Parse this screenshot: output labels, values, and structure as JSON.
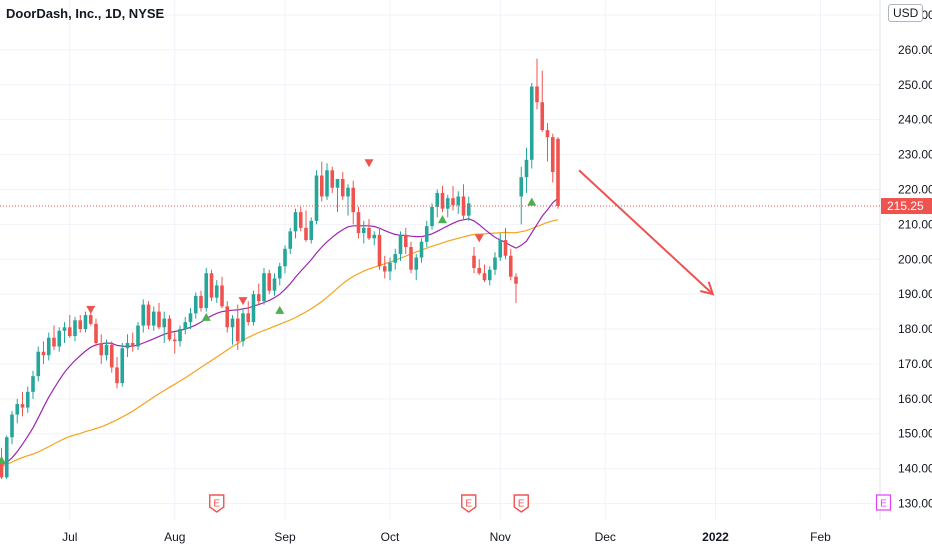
{
  "header": {
    "title": "DoorDash, Inc., 1D, NYSE",
    "currency": "USD"
  },
  "colors": {
    "up": "#26a69a",
    "down": "#ef5350",
    "ma_fast": "#9c27b0",
    "ma_slow": "#f7a21b",
    "price_line": "#ef5350",
    "arrow": "#ef5350",
    "earnings": "#ef5350",
    "earnings_future": "#e040fb"
  },
  "chart_data": {
    "type": "candlestick",
    "title": "DoorDash, Inc., 1D, NYSE",
    "ylim": [
      127,
      272
    ],
    "y_ticks": [
      {
        "value": 130,
        "label": "130.00"
      },
      {
        "value": 140,
        "label": "140.00"
      },
      {
        "value": 150,
        "label": "150.00"
      },
      {
        "value": 160,
        "label": "160.00"
      },
      {
        "value": 170,
        "label": "170.00"
      },
      {
        "value": 180,
        "label": "180.00"
      },
      {
        "value": 190,
        "label": "190.00"
      },
      {
        "value": 200,
        "label": "200.00"
      },
      {
        "value": 210,
        "label": "210.00"
      },
      {
        "value": 220,
        "label": "220.00"
      },
      {
        "value": 230,
        "label": "230.00"
      },
      {
        "value": 240,
        "label": "240.00"
      },
      {
        "value": 250,
        "label": "250.00"
      },
      {
        "value": 260,
        "label": "260.00"
      },
      {
        "value": 270,
        "label": "270.00"
      }
    ],
    "x_ticks": [
      {
        "bar": 13,
        "label": "Jul"
      },
      {
        "bar": 33,
        "label": "Aug"
      },
      {
        "bar": 54,
        "label": "Sep"
      },
      {
        "bar": 74,
        "label": "Oct"
      },
      {
        "bar": 95,
        "label": "Nov"
      },
      {
        "bar": 115,
        "label": "Dec"
      },
      {
        "bar": 136,
        "label": "2022"
      },
      {
        "bar": 156,
        "label": "Feb"
      }
    ],
    "last_price": {
      "value": 215.25,
      "label": "215.25"
    },
    "candles": [
      [
        142.5,
        146.0,
        137.0,
        137.5
      ],
      [
        137.5,
        149.5,
        137.0,
        149.0
      ],
      [
        149.0,
        156.5,
        147.0,
        155.5
      ],
      [
        155.5,
        160.0,
        153.0,
        158.5
      ],
      [
        158.5,
        162.0,
        155.0,
        157.5
      ],
      [
        157.5,
        163.5,
        156.0,
        162.0
      ],
      [
        162.0,
        168.0,
        160.0,
        166.5
      ],
      [
        166.5,
        175.0,
        165.0,
        173.5
      ],
      [
        173.5,
        176.5,
        170.0,
        172.5
      ],
      [
        172.5,
        179.0,
        171.0,
        177.5
      ],
      [
        177.5,
        181.0,
        174.0,
        175.0
      ],
      [
        175.0,
        180.5,
        173.5,
        179.5
      ],
      [
        179.5,
        182.0,
        176.0,
        180.5
      ],
      [
        180.5,
        184.0,
        177.5,
        178.0
      ],
      [
        178.0,
        183.5,
        176.5,
        182.5
      ],
      [
        182.5,
        184.0,
        179.0,
        180.0
      ],
      [
        180.0,
        185.0,
        179.0,
        184.0
      ],
      [
        184.0,
        185.5,
        181.0,
        181.5
      ],
      [
        181.5,
        183.0,
        175.0,
        176.0
      ],
      [
        176.0,
        178.5,
        170.0,
        172.5
      ],
      [
        172.5,
        177.0,
        171.0,
        175.5
      ],
      [
        175.5,
        176.5,
        167.5,
        169.0
      ],
      [
        169.0,
        172.0,
        163.0,
        164.5
      ],
      [
        164.5,
        176.0,
        163.5,
        174.5
      ],
      [
        174.5,
        178.5,
        172.0,
        176.0
      ],
      [
        176.0,
        179.0,
        173.5,
        175.0
      ],
      [
        175.0,
        182.0,
        174.0,
        181.0
      ],
      [
        181.0,
        188.5,
        179.0,
        187.0
      ],
      [
        187.0,
        188.0,
        180.0,
        181.0
      ],
      [
        181.0,
        186.5,
        179.5,
        185.0
      ],
      [
        185.0,
        187.5,
        180.0,
        180.5
      ],
      [
        180.5,
        185.0,
        176.0,
        183.0
      ],
      [
        183.0,
        184.0,
        176.5,
        177.0
      ],
      [
        177.0,
        179.0,
        173.0,
        176.5
      ],
      [
        176.5,
        181.0,
        175.0,
        180.0
      ],
      [
        180.0,
        183.5,
        178.5,
        182.0
      ],
      [
        182.0,
        186.0,
        180.0,
        184.5
      ],
      [
        184.5,
        190.5,
        183.0,
        189.5
      ],
      [
        189.5,
        191.0,
        185.0,
        186.0
      ],
      [
        186.0,
        197.5,
        185.0,
        196.0
      ],
      [
        196.0,
        197.0,
        188.0,
        189.0
      ],
      [
        189.0,
        194.0,
        187.5,
        192.5
      ],
      [
        192.5,
        195.0,
        186.0,
        186.5
      ],
      [
        186.5,
        188.0,
        179.0,
        180.5
      ],
      [
        180.5,
        184.0,
        175.5,
        183.0
      ],
      [
        183.0,
        187.0,
        174.0,
        176.5
      ],
      [
        176.5,
        186.0,
        175.0,
        184.5
      ],
      [
        184.5,
        188.0,
        181.0,
        182.0
      ],
      [
        182.0,
        191.0,
        181.0,
        190.0
      ],
      [
        190.0,
        193.0,
        187.0,
        188.0
      ],
      [
        188.0,
        197.5,
        187.0,
        196.0
      ],
      [
        196.0,
        197.0,
        190.0,
        191.0
      ],
      [
        191.0,
        196.0,
        189.5,
        194.5
      ],
      [
        194.5,
        199.0,
        192.5,
        198.0
      ],
      [
        198.0,
        204.0,
        196.0,
        203.0
      ],
      [
        203.0,
        209.0,
        201.5,
        208.0
      ],
      [
        208.0,
        214.5,
        206.0,
        213.5
      ],
      [
        213.5,
        215.0,
        208.0,
        209.0
      ],
      [
        209.0,
        214.0,
        205.0,
        205.5
      ],
      [
        205.5,
        212.0,
        204.5,
        211.0
      ],
      [
        211.0,
        225.5,
        210.0,
        224.0
      ],
      [
        224.0,
        228.0,
        216.5,
        218.0
      ],
      [
        218.0,
        227.5,
        217.0,
        225.5
      ],
      [
        225.5,
        226.5,
        219.0,
        220.5
      ],
      [
        220.5,
        223.0,
        213.5,
        223.0
      ],
      [
        223.0,
        225.0,
        217.0,
        218.0
      ],
      [
        218.0,
        221.5,
        212.5,
        220.5
      ],
      [
        220.5,
        222.5,
        210.0,
        213.5
      ],
      [
        213.5,
        215.0,
        206.0,
        207.5
      ],
      [
        207.5,
        211.0,
        204.5,
        209.0
      ],
      [
        209.0,
        211.5,
        205.5,
        206.0
      ],
      [
        206.0,
        208.0,
        204.0,
        207.0
      ],
      [
        207.0,
        209.0,
        197.0,
        198.0
      ],
      [
        198.0,
        201.0,
        194.5,
        196.5
      ],
      [
        196.5,
        200.5,
        194.0,
        199.0
      ],
      [
        199.0,
        203.0,
        197.0,
        201.5
      ],
      [
        201.5,
        208.0,
        199.5,
        207.0
      ],
      [
        207.0,
        209.0,
        201.5,
        203.5
      ],
      [
        203.5,
        205.0,
        196.0,
        197.0
      ],
      [
        197.0,
        201.5,
        194.0,
        200.5
      ],
      [
        200.5,
        206.0,
        199.0,
        205.0
      ],
      [
        205.0,
        211.0,
        203.5,
        209.5
      ],
      [
        209.5,
        216.0,
        208.5,
        215.0
      ],
      [
        215.0,
        220.0,
        212.0,
        219.0
      ],
      [
        219.0,
        221.0,
        213.5,
        214.5
      ],
      [
        214.5,
        218.5,
        212.0,
        217.5
      ],
      [
        217.5,
        221.0,
        214.0,
        215.5
      ],
      [
        215.5,
        219.5,
        213.0,
        218.0
      ],
      [
        218.0,
        221.5,
        211.5,
        212.5
      ],
      [
        212.5,
        218.0,
        211.0,
        216.0
      ],
      [
        201.0,
        203.5,
        196.0,
        197.5
      ],
      [
        197.5,
        200.0,
        195.5,
        196.0
      ],
      [
        196.0,
        198.5,
        193.5,
        194.0
      ],
      [
        194.0,
        198.0,
        192.5,
        197.0
      ],
      [
        197.0,
        202.0,
        195.5,
        200.5
      ],
      [
        200.5,
        207.5,
        199.5,
        205.5
      ],
      [
        205.5,
        209.0,
        200.0,
        201.0
      ],
      [
        201.0,
        203.0,
        194.0,
        195.0
      ],
      [
        195.0,
        196.0,
        187.5,
        193.0
      ],
      [
        218.0,
        226.5,
        210.0,
        223.5
      ],
      [
        223.5,
        232.0,
        219.0,
        228.5
      ],
      [
        228.5,
        250.5,
        226.0,
        249.5
      ],
      [
        249.5,
        257.5,
        243.0,
        245.0
      ],
      [
        245.0,
        254.0,
        236.5,
        237.0
      ],
      [
        237.0,
        239.0,
        228.0,
        235.0
      ],
      [
        235.0,
        236.0,
        222.0,
        225.0
      ],
      [
        234.5,
        235.0,
        214.5,
        215.25
      ]
    ],
    "ma_fast": {
      "start_bar": 0,
      "values": [
        141.0,
        141.8,
        143.1,
        144.9,
        147.0,
        149.3,
        151.7,
        154.6,
        157.6,
        160.5,
        163.0,
        165.4,
        167.6,
        169.4,
        171.0,
        172.4,
        173.7,
        174.8,
        175.5,
        175.8,
        176.0,
        175.9,
        175.3,
        175.1,
        175.0,
        175.1,
        175.4,
        176.0,
        176.6,
        177.2,
        177.9,
        178.5,
        179.0,
        179.3,
        179.6,
        180.0,
        180.5,
        181.2,
        182.0,
        183.0,
        183.8,
        184.5,
        185.0,
        185.2,
        185.4,
        185.5,
        185.8,
        186.0,
        186.6,
        187.0,
        187.6,
        188.2,
        189.0,
        190.0,
        191.4,
        193.0,
        194.9,
        196.6,
        198.2,
        199.9,
        201.8,
        203.5,
        205.0,
        206.3,
        207.5,
        208.5,
        209.3,
        209.6,
        209.6,
        209.6,
        209.6,
        209.4,
        208.9,
        208.2,
        207.6,
        207.1,
        206.9,
        206.8,
        206.6,
        206.5,
        206.5,
        206.8,
        207.3,
        208.0,
        208.8,
        209.6,
        210.3,
        211.0,
        211.3,
        211.6,
        211.0,
        209.9,
        208.6,
        207.4,
        206.3,
        205.5,
        204.8,
        203.9,
        203.2,
        204.0,
        205.2,
        207.6,
        210.0,
        212.4,
        214.2,
        216.2,
        217.5
      ]
    },
    "ma_slow": {
      "start_bar": 0,
      "values": [
        140.5,
        141.2,
        141.9,
        142.6,
        143.2,
        143.7,
        144.2,
        144.8,
        145.5,
        146.3,
        147.1,
        147.9,
        148.6,
        149.2,
        149.7,
        150.1,
        150.6,
        151.0,
        151.5,
        152.0,
        152.6,
        153.3,
        154.0,
        154.8,
        155.6,
        156.5,
        157.5,
        158.5,
        159.5,
        160.5,
        161.5,
        162.4,
        163.3,
        164.2,
        165.1,
        166.0,
        167.0,
        168.0,
        169.0,
        170.0,
        171.0,
        172.0,
        173.0,
        174.0,
        175.0,
        175.9,
        176.8,
        177.6,
        178.3,
        179.0,
        179.6,
        180.2,
        180.8,
        181.4,
        182.0,
        182.6,
        183.3,
        184.1,
        184.9,
        185.8,
        186.8,
        187.9,
        189.1,
        190.4,
        191.7,
        193.0,
        194.1,
        195.1,
        195.9,
        196.6,
        197.2,
        197.7,
        198.2,
        198.7,
        199.2,
        199.7,
        200.3,
        200.9,
        201.5,
        202.1,
        202.6,
        203.2,
        203.7,
        204.2,
        204.7,
        205.2,
        205.6,
        206.0,
        206.4,
        206.8,
        207.1,
        207.2,
        207.3,
        207.4,
        207.5,
        207.6,
        207.7,
        207.6,
        207.6,
        207.9,
        208.2,
        208.8,
        209.4,
        210.0,
        210.6,
        211.0,
        211.3
      ]
    },
    "signals": [
      {
        "bar": 0,
        "type": "buy",
        "price": 142.5
      },
      {
        "bar": 17,
        "type": "sell",
        "price": 185.5
      },
      {
        "bar": 39,
        "type": "buy",
        "price": 183.5
      },
      {
        "bar": 46,
        "type": "sell",
        "price": 188.0
      },
      {
        "bar": 53,
        "type": "buy",
        "price": 185.5
      },
      {
        "bar": 70,
        "type": "sell",
        "price": 227.5
      },
      {
        "bar": 84,
        "type": "buy",
        "price": 211.5
      },
      {
        "bar": 91,
        "type": "sell",
        "price": 206.0
      },
      {
        "bar": 101,
        "type": "buy",
        "price": 216.5
      }
    ],
    "earnings": [
      {
        "bar": 41,
        "label": "E",
        "future": false
      },
      {
        "bar": 89,
        "label": "E",
        "future": false
      },
      {
        "bar": 99,
        "label": "E",
        "future": false
      },
      {
        "bar": 168,
        "label": "E",
        "future": true
      }
    ],
    "arrow": {
      "from_bar": 110,
      "from_price": 225.5,
      "to_bar": 135.5,
      "to_price": 190.0
    }
  }
}
